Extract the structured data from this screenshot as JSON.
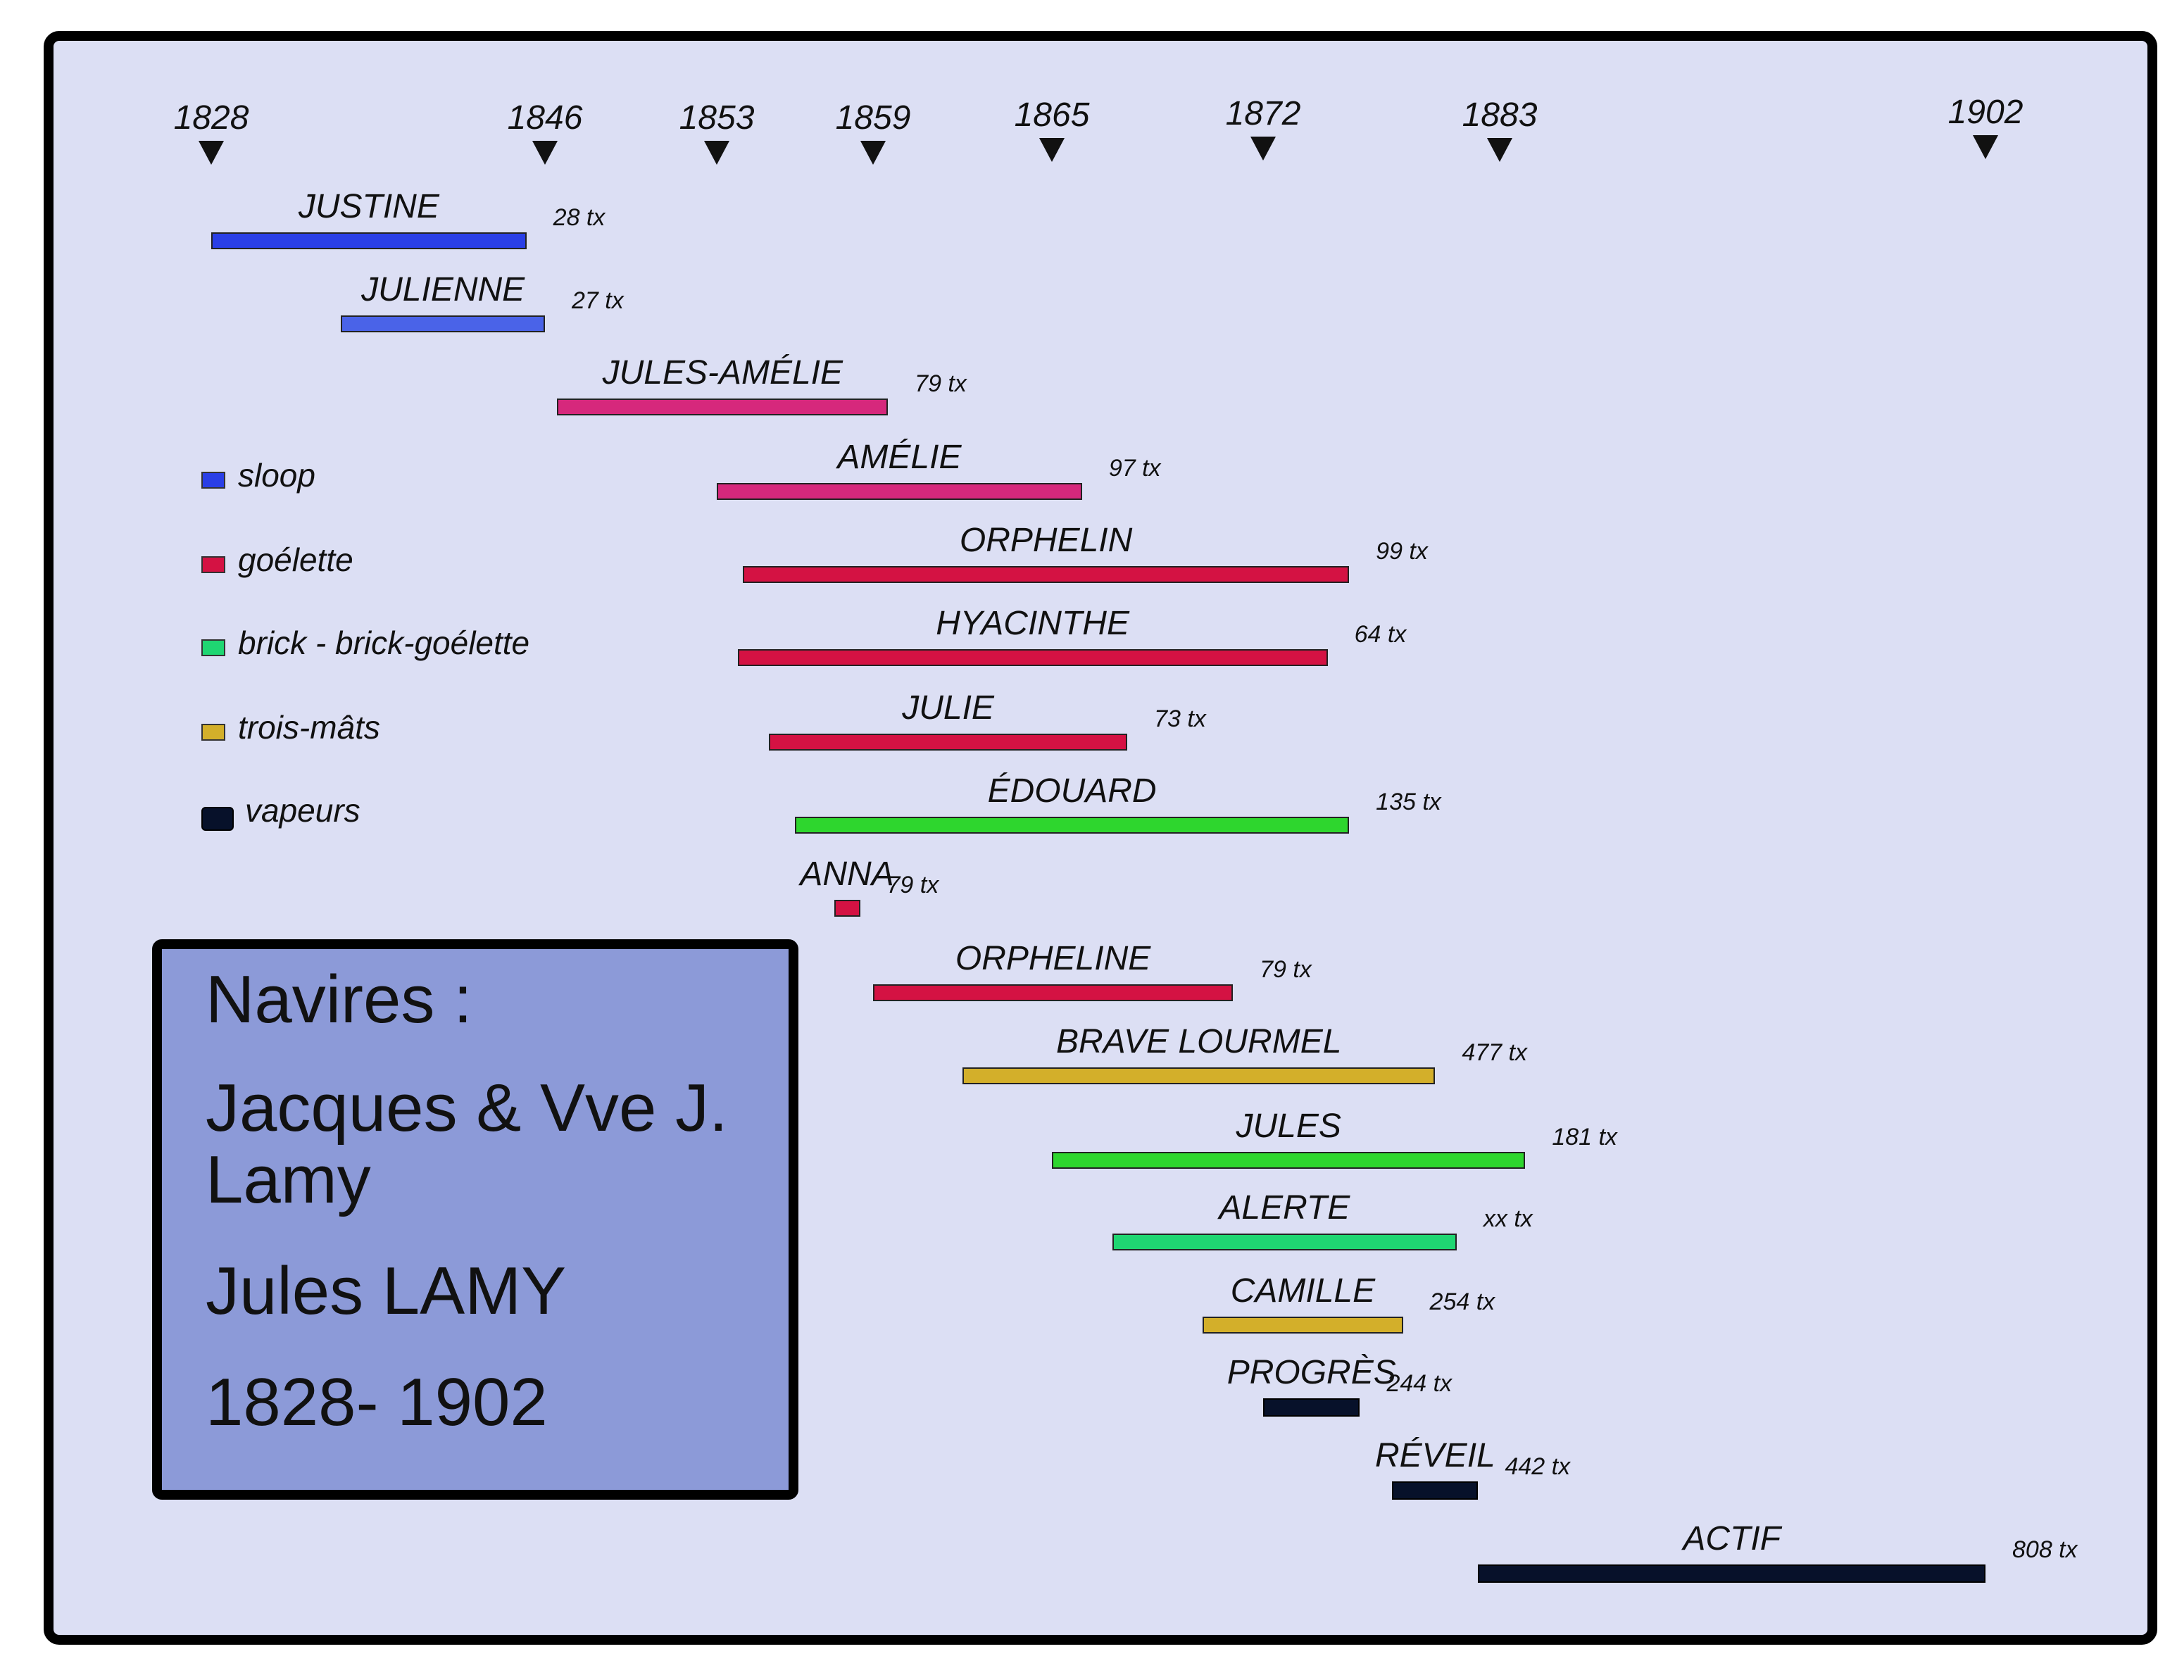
{
  "timeline": {
    "years": [
      {
        "label": "1828",
        "value": 1828
      },
      {
        "label": "1846",
        "value": 1846
      },
      {
        "label": "1853",
        "value": 1853
      },
      {
        "label": "1859",
        "value": 1859
      },
      {
        "label": "1865",
        "value": 1865
      },
      {
        "label": "1872",
        "value": 1872
      },
      {
        "label": "1883",
        "value": 1883
      },
      {
        "label": "1902",
        "value": 1902
      }
    ]
  },
  "ships": [
    {
      "name": "JUSTINE",
      "tonnage": "28 tx",
      "type": "sloop",
      "start": 1828,
      "end": 1845
    },
    {
      "name": "JULIENNE",
      "tonnage": "27 tx",
      "type": "sloop",
      "start": 1835,
      "end": 1846
    },
    {
      "name": "JULES-AMÉLIE",
      "tonnage": "79 tx",
      "type": "goelette-pink",
      "start": 1846.5,
      "end": 1859.5
    },
    {
      "name": "AMÉLIE",
      "tonnage": "97 tx",
      "type": "goelette-pink",
      "start": 1853,
      "end": 1866
    },
    {
      "name": "ORPHELIN",
      "tonnage": "99 tx",
      "type": "goelette",
      "start": 1854,
      "end": 1876
    },
    {
      "name": "HYACINTHE",
      "tonnage": "64 tx",
      "type": "goelette",
      "start": 1853.8,
      "end": 1875
    },
    {
      "name": "JULIE",
      "tonnage": "73 tx",
      "type": "goelette",
      "start": 1855,
      "end": 1867.5
    },
    {
      "name": "ÉDOUARD",
      "tonnage": "135 tx",
      "type": "brick-green",
      "start": 1856,
      "end": 1876
    },
    {
      "name": "ANNA",
      "tonnage": "79 tx",
      "type": "goelette",
      "start": 1857.5,
      "end": 1858.5
    },
    {
      "name": "ORPHELINE",
      "tonnage": "79 tx",
      "type": "goelette",
      "start": 1859,
      "end": 1871
    },
    {
      "name": "BRAVE LOURMEL",
      "tonnage": "477 tx",
      "type": "trois-mats",
      "start": 1862,
      "end": 1880
    },
    {
      "name": "JULES",
      "tonnage": "181 tx",
      "type": "brick-green",
      "start": 1865,
      "end": 1884
    },
    {
      "name": "ALERTE",
      "tonnage": "xx tx",
      "type": "brick",
      "start": 1867,
      "end": 1881
    },
    {
      "name": "CAMILLE",
      "tonnage": "254 tx",
      "type": "trois-mats",
      "start": 1870,
      "end": 1878.5
    },
    {
      "name": "PROGRÈS",
      "tonnage": "244 tx",
      "type": "vapeurs",
      "start": 1872,
      "end": 1876.5
    },
    {
      "name": "RÉVEIL",
      "tonnage": "442 tx",
      "type": "vapeurs",
      "start": 1878,
      "end": 1882
    },
    {
      "name": "ACTIF",
      "tonnage": "808 tx",
      "type": "vapeurs",
      "start": 1882,
      "end": 1902
    }
  ],
  "legend": [
    {
      "label": "sloop",
      "type": "sloop"
    },
    {
      "label": "goélette",
      "type": "goelette"
    },
    {
      "label": "brick -  brick-goélette",
      "type": "brick"
    },
    {
      "label": "trois-mâts",
      "type": "trois-mats"
    },
    {
      "label": "vapeurs",
      "type": "vapeurs"
    }
  ],
  "colors": {
    "sloop": "#2a3fe6",
    "sloop-light": "#4a63e8",
    "goelette": "#d41243",
    "goelette-pink": "#d6287c",
    "brick": "#1fd672",
    "brick-green": "#2ed62e",
    "trois-mats": "#d3af2a",
    "vapeurs": "#07112a",
    "background": "#dcdff4",
    "title-box": "#8c9ad8"
  },
  "title_box": {
    "line1": "Navires :",
    "line2": "Jacques & Vve J.",
    "line3": "Lamy",
    "line4": "Jules LAMY",
    "line5": "1828- 1902"
  }
}
